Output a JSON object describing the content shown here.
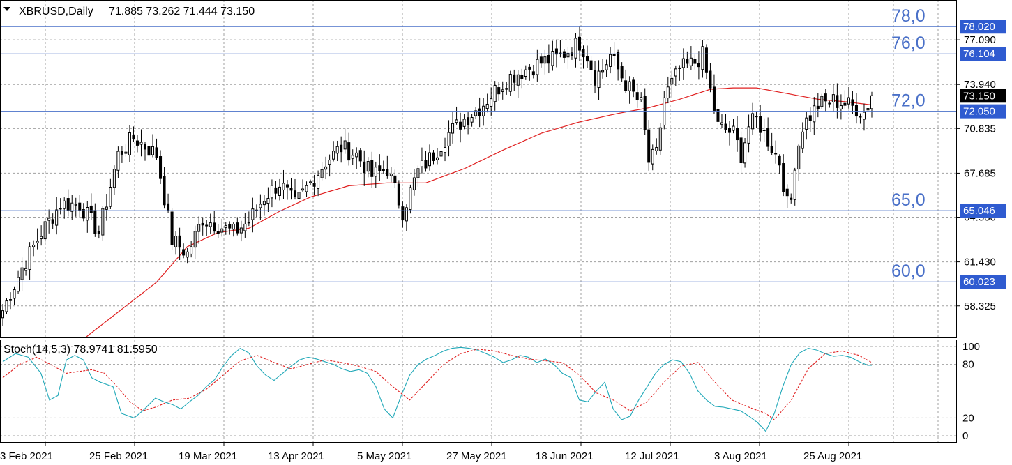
{
  "header": {
    "symbol_line": "XBRUSD,Daily",
    "ohlc": "71.885 73.262 71.444 73.150"
  },
  "colors": {
    "background": "#ffffff",
    "grid": "#a0a0a0",
    "level_lines": "#4A70C8",
    "price_box": "#2F5BD0",
    "last_price_box": "#000000",
    "moving_average": "#e02020",
    "stoch_main": "#20A8B8",
    "stoch_signal": "#e02020",
    "candle_up": "#ffffff",
    "candle_down": "#000000"
  },
  "chart_data": [
    {
      "type": "candlestick",
      "symbol": "XBRUSD",
      "timeframe": "Daily",
      "ylim": [
        56.1,
        79.9
      ],
      "y_ticks": [
        "77.090",
        "73.940",
        "70.835",
        "67.685",
        "64.580",
        "61.430",
        "58.325"
      ],
      "x_ticks": [
        "3 Feb 2021",
        "25 Feb 2021",
        "19 Mar 2021",
        "13 Apr 2021",
        "5 May 2021",
        "27 May 2021",
        "18 Jun 2021",
        "12 Jul 2021",
        "3 Aug 2021",
        "25 Aug 2021"
      ],
      "grid": true,
      "horizontal_levels": [
        {
          "label": "78,0",
          "value": 78.02,
          "price_box": "78.020"
        },
        {
          "label": "76,0",
          "value": 76.104,
          "price_box": "76.104"
        },
        {
          "label": "72,0",
          "value": 72.05,
          "price_box": "72.050"
        },
        {
          "label": "65,0",
          "value": 65.046,
          "price_box": "65.046"
        },
        {
          "label": "60,0",
          "value": 60.023,
          "price_box": "60.023"
        }
      ],
      "last_price": {
        "value": 73.15,
        "label": "73.150"
      },
      "anchors": [
        [
          0,
          58.0
        ],
        [
          5,
          61.0
        ],
        [
          10,
          63.5
        ],
        [
          15,
          65.5
        ],
        [
          20,
          65.5
        ],
        [
          25,
          63.5
        ],
        [
          30,
          69.0
        ],
        [
          34,
          70.2
        ],
        [
          40,
          69.0
        ],
        [
          44,
          63.0
        ],
        [
          48,
          62.0
        ],
        [
          52,
          64.5
        ],
        [
          56,
          64.0
        ],
        [
          60,
          63.5
        ],
        [
          64,
          64.3
        ],
        [
          68,
          66.0
        ],
        [
          72,
          67.0
        ],
        [
          76,
          65.5
        ],
        [
          80,
          67.0
        ],
        [
          84,
          68.5
        ],
        [
          88,
          69.5
        ],
        [
          92,
          69.0
        ],
        [
          96,
          67.5
        ],
        [
          100,
          68.0
        ],
        [
          104,
          65.0
        ],
        [
          108,
          67.8
        ],
        [
          112,
          69.0
        ],
        [
          116,
          70.5
        ],
        [
          120,
          71.5
        ],
        [
          124,
          72.3
        ],
        [
          128,
          73.5
        ],
        [
          132,
          74.5
        ],
        [
          136,
          75.0
        ],
        [
          140,
          75.5
        ],
        [
          144,
          75.8
        ],
        [
          148,
          76.5
        ],
        [
          150,
          76.9
        ],
        [
          152,
          76.0
        ],
        [
          154,
          74.5
        ],
        [
          156,
          75.0
        ],
        [
          158,
          76.0
        ],
        [
          162,
          74.0
        ],
        [
          166,
          72.5
        ],
        [
          168,
          68.5
        ],
        [
          170,
          69.0
        ],
        [
          172,
          73.0
        ],
        [
          176,
          75.0
        ],
        [
          180,
          75.5
        ],
        [
          182,
          76.0
        ],
        [
          184,
          73.5
        ],
        [
          186,
          71.0
        ],
        [
          190,
          70.5
        ],
        [
          192,
          69.0
        ],
        [
          194,
          71.0
        ],
        [
          196,
          71.5
        ],
        [
          198,
          70.5
        ],
        [
          200,
          69.5
        ],
        [
          202,
          68.5
        ],
        [
          204,
          65.5
        ],
        [
          205,
          65.8
        ],
        [
          206,
          68.5
        ],
        [
          208,
          71.0
        ],
        [
          212,
          72.5
        ],
        [
          216,
          72.8
        ],
        [
          220,
          72.5
        ],
        [
          224,
          72.0
        ],
        [
          226,
          73.15
        ]
      ],
      "moving_average": {
        "anchors": [
          [
            0,
            50.0
          ],
          [
            22,
            56.2
          ],
          [
            40,
            60.0
          ],
          [
            48,
            62.5
          ],
          [
            56,
            63.5
          ],
          [
            64,
            63.8
          ],
          [
            72,
            65.0
          ],
          [
            80,
            66.0
          ],
          [
            90,
            66.8
          ],
          [
            100,
            67.0
          ],
          [
            110,
            67.0
          ],
          [
            120,
            68.0
          ],
          [
            130,
            69.3
          ],
          [
            140,
            70.5
          ],
          [
            150,
            71.3
          ],
          [
            160,
            71.9
          ],
          [
            168,
            72.3
          ],
          [
            176,
            72.9
          ],
          [
            184,
            73.6
          ],
          [
            190,
            73.7
          ],
          [
            196,
            73.7
          ],
          [
            204,
            73.3
          ],
          [
            212,
            72.9
          ],
          [
            220,
            72.7
          ],
          [
            226,
            72.5
          ]
        ]
      }
    },
    {
      "type": "line",
      "title": "Stoch(14,5,3) 78.9741 81.5950",
      "ylim": [
        0,
        100
      ],
      "y_ticks": [
        "100",
        "80",
        "20",
        "0"
      ],
      "series": [
        {
          "name": "main",
          "color": "#20A8B8",
          "anchors": [
            [
              0,
              83
            ],
            [
              3,
              92
            ],
            [
              6,
              88
            ],
            [
              9,
              70
            ],
            [
              11,
              40
            ],
            [
              13,
              45
            ],
            [
              15,
              85
            ],
            [
              17,
              90
            ],
            [
              19,
              85
            ],
            [
              21,
              65
            ],
            [
              23,
              60
            ],
            [
              26,
              55
            ],
            [
              28,
              25
            ],
            [
              31,
              20
            ],
            [
              33,
              28
            ],
            [
              36,
              42
            ],
            [
              38,
              38
            ],
            [
              40,
              35
            ],
            [
              42,
              30
            ],
            [
              44,
              38
            ],
            [
              46,
              45
            ],
            [
              48,
              55
            ],
            [
              50,
              63
            ],
            [
              52,
              78
            ],
            [
              54,
              90
            ],
            [
              56,
              98
            ],
            [
              58,
              93
            ],
            [
              60,
              78
            ],
            [
              62,
              68
            ],
            [
              64,
              62
            ],
            [
              66,
              70
            ],
            [
              68,
              78
            ],
            [
              70,
              85
            ],
            [
              72,
              88
            ],
            [
              74,
              86
            ],
            [
              76,
              83
            ],
            [
              78,
              80
            ],
            [
              80,
              75
            ],
            [
              82,
              72
            ],
            [
              84,
              74
            ],
            [
              86,
              70
            ],
            [
              88,
              55
            ],
            [
              90,
              30
            ],
            [
              92,
              20
            ],
            [
              94,
              45
            ],
            [
              96,
              68
            ],
            [
              98,
              80
            ],
            [
              100,
              86
            ],
            [
              102,
              90
            ],
            [
              104,
              95
            ],
            [
              106,
              98
            ],
            [
              108,
              99
            ],
            [
              110,
              98
            ],
            [
              112,
              96
            ],
            [
              114,
              92
            ],
            [
              116,
              88
            ],
            [
              118,
              82
            ],
            [
              120,
              85
            ],
            [
              122,
              90
            ],
            [
              124,
              88
            ],
            [
              126,
              82
            ],
            [
              128,
              86
            ],
            [
              130,
              80
            ],
            [
              132,
              70
            ],
            [
              134,
              65
            ],
            [
              136,
              40
            ],
            [
              138,
              38
            ],
            [
              140,
              50
            ],
            [
              142,
              60
            ],
            [
              144,
              30
            ],
            [
              146,
              18
            ],
            [
              148,
              22
            ],
            [
              150,
              40
            ],
            [
              152,
              55
            ],
            [
              154,
              70
            ],
            [
              156,
              80
            ],
            [
              158,
              85
            ],
            [
              160,
              83
            ],
            [
              162,
              70
            ],
            [
              164,
              50
            ],
            [
              166,
              40
            ],
            [
              168,
              33
            ],
            [
              170,
              32
            ],
            [
              172,
              30
            ],
            [
              174,
              28
            ],
            [
              176,
              22
            ],
            [
              178,
              15
            ],
            [
              180,
              5
            ],
            [
              182,
              25
            ],
            [
              184,
              55
            ],
            [
              186,
              80
            ],
            [
              188,
              93
            ],
            [
              190,
              98
            ],
            [
              192,
              96
            ],
            [
              194,
              92
            ],
            [
              196,
              89
            ],
            [
              198,
              90
            ],
            [
              200,
              88
            ],
            [
              202,
              83
            ],
            [
              204,
              79
            ],
            [
              205,
              79
            ]
          ]
        },
        {
          "name": "signal",
          "color": "#e02020",
          "dashed": true,
          "anchors": [
            [
              0,
              65
            ],
            [
              4,
              80
            ],
            [
              8,
              88
            ],
            [
              12,
              78
            ],
            [
              15,
              70
            ],
            [
              18,
              72
            ],
            [
              21,
              74
            ],
            [
              24,
              70
            ],
            [
              27,
              55
            ],
            [
              30,
              38
            ],
            [
              33,
              28
            ],
            [
              36,
              32
            ],
            [
              40,
              40
            ],
            [
              44,
              42
            ],
            [
              48,
              52
            ],
            [
              52,
              68
            ],
            [
              56,
              84
            ],
            [
              60,
              90
            ],
            [
              64,
              82
            ],
            [
              68,
              75
            ],
            [
              72,
              80
            ],
            [
              76,
              85
            ],
            [
              80,
              82
            ],
            [
              84,
              78
            ],
            [
              88,
              72
            ],
            [
              92,
              55
            ],
            [
              96,
              40
            ],
            [
              100,
              60
            ],
            [
              104,
              80
            ],
            [
              108,
              92
            ],
            [
              112,
              97
            ],
            [
              116,
              95
            ],
            [
              120,
              90
            ],
            [
              124,
              86
            ],
            [
              128,
              84
            ],
            [
              132,
              82
            ],
            [
              136,
              68
            ],
            [
              140,
              48
            ],
            [
              144,
              40
            ],
            [
              148,
              28
            ],
            [
              152,
              38
            ],
            [
              156,
              60
            ],
            [
              160,
              78
            ],
            [
              164,
              82
            ],
            [
              168,
              60
            ],
            [
              172,
              40
            ],
            [
              176,
              32
            ],
            [
              180,
              25
            ],
            [
              182,
              18
            ],
            [
              186,
              40
            ],
            [
              190,
              75
            ],
            [
              194,
              92
            ],
            [
              198,
              95
            ],
            [
              202,
              90
            ],
            [
              205,
              82
            ]
          ]
        }
      ]
    }
  ]
}
